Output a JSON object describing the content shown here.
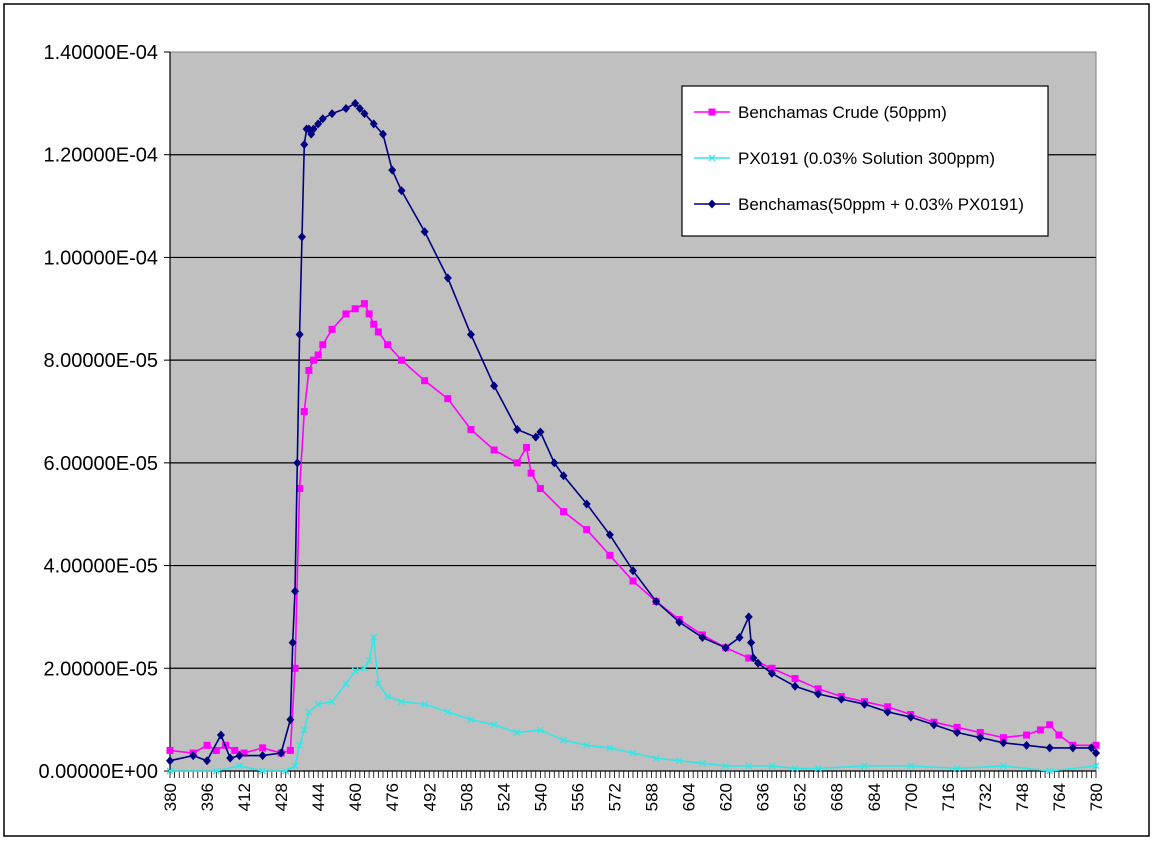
{
  "chart_data": {
    "type": "line",
    "title": "",
    "xlabel": "",
    "ylabel": "",
    "x_range": [
      380,
      780
    ],
    "x_tick_step": 16,
    "x_tick_labels": [
      "380",
      "396",
      "412",
      "428",
      "444",
      "460",
      "476",
      "492",
      "508",
      "524",
      "540",
      "556",
      "572",
      "588",
      "604",
      "620",
      "636",
      "652",
      "668",
      "684",
      "700",
      "716",
      "732",
      "748",
      "764",
      "780"
    ],
    "ylim": [
      0,
      0.00014
    ],
    "y_tick_labels": [
      "0.00000E+00",
      "2.00000E-05",
      "4.00000E-05",
      "6.00000E-05",
      "8.00000E-05",
      "1.00000E-04",
      "1.20000E-04",
      "1.40000E-04"
    ],
    "grid": "horizontal",
    "legend_position": "top-right",
    "plot_background": "#c0c0c0",
    "series": [
      {
        "name": "Benchamas Crude (50ppm)",
        "color": "#ff00ff",
        "marker": "square",
        "x": [
          380,
          390,
          396,
          400,
          404,
          408,
          412,
          420,
          428,
          432,
          434,
          436,
          438,
          440,
          442,
          444,
          446,
          450,
          456,
          460,
          464,
          466,
          468,
          470,
          474,
          480,
          490,
          500,
          510,
          520,
          530,
          534,
          536,
          540,
          550,
          560,
          570,
          580,
          590,
          600,
          610,
          620,
          630,
          640,
          650,
          660,
          670,
          680,
          690,
          700,
          710,
          720,
          730,
          740,
          750,
          756,
          760,
          764,
          770,
          780
        ],
        "y": [
          4e-06,
          3.5e-06,
          5e-06,
          4e-06,
          5e-06,
          4e-06,
          3.5e-06,
          4.5e-06,
          3.5e-06,
          4e-06,
          2e-05,
          5.5e-05,
          7e-05,
          7.8e-05,
          8e-05,
          8.1e-05,
          8.3e-05,
          8.6e-05,
          8.9e-05,
          9e-05,
          9.1e-05,
          8.9e-05,
          8.7e-05,
          8.55e-05,
          8.3e-05,
          8e-05,
          7.6e-05,
          7.25e-05,
          6.65e-05,
          6.25e-05,
          6e-05,
          6.3e-05,
          5.8e-05,
          5.5e-05,
          5.05e-05,
          4.7e-05,
          4.2e-05,
          3.7e-05,
          3.3e-05,
          2.95e-05,
          2.65e-05,
          2.4e-05,
          2.2e-05,
          2e-05,
          1.8e-05,
          1.6e-05,
          1.45e-05,
          1.35e-05,
          1.25e-05,
          1.1e-05,
          9.5e-06,
          8.5e-06,
          7.5e-06,
          6.5e-06,
          7e-06,
          8e-06,
          9e-06,
          7e-06,
          5e-06,
          5e-06
        ]
      },
      {
        "name": "PX0191 (0.03% Solution 300ppm)",
        "color": "#33e6e6",
        "marker": "x",
        "x": [
          380,
          400,
          410,
          420,
          430,
          434,
          436,
          438,
          440,
          444,
          450,
          456,
          460,
          464,
          466,
          468,
          470,
          474,
          480,
          490,
          500,
          510,
          520,
          530,
          540,
          550,
          560,
          570,
          580,
          590,
          600,
          610,
          620,
          630,
          640,
          650,
          660,
          680,
          700,
          720,
          740,
          760,
          780
        ],
        "y": [
          0,
          0,
          1e-06,
          0,
          0,
          1e-06,
          5e-06,
          8e-06,
          1.15e-05,
          1.3e-05,
          1.35e-05,
          1.7e-05,
          1.95e-05,
          2e-05,
          2.15e-05,
          2.6e-05,
          1.7e-05,
          1.45e-05,
          1.35e-05,
          1.3e-05,
          1.15e-05,
          1e-05,
          9e-06,
          7.5e-06,
          8e-06,
          6e-06,
          5e-06,
          4.5e-06,
          3.5e-06,
          2.5e-06,
          2e-06,
          1.5e-06,
          1e-06,
          1e-06,
          1e-06,
          5e-07,
          5e-07,
          1e-06,
          1e-06,
          5e-07,
          1e-06,
          0,
          1e-06
        ]
      },
      {
        "name": "Benchamas(50ppm + 0.03% PX0191)",
        "color": "#000080",
        "marker": "diamond",
        "x": [
          380,
          390,
          396,
          402,
          406,
          410,
          420,
          428,
          432,
          433,
          434,
          435,
          436,
          437,
          438,
          439,
          440,
          441,
          442,
          444,
          446,
          450,
          456,
          460,
          462,
          464,
          468,
          472,
          476,
          480,
          490,
          500,
          510,
          520,
          530,
          538,
          540,
          546,
          550,
          560,
          570,
          580,
          590,
          600,
          610,
          620,
          626,
          630,
          631,
          632,
          634,
          640,
          650,
          660,
          670,
          680,
          690,
          700,
          710,
          720,
          730,
          740,
          750,
          760,
          770,
          778,
          780
        ],
        "y": [
          2e-06,
          3e-06,
          2e-06,
          7e-06,
          2.5e-06,
          3e-06,
          3e-06,
          3.5e-06,
          1e-05,
          2.5e-05,
          3.5e-05,
          6e-05,
          8.5e-05,
          0.000104,
          0.000122,
          0.000125,
          0.000125,
          0.000124,
          0.000125,
          0.000126,
          0.000127,
          0.000128,
          0.000129,
          0.00013,
          0.000129,
          0.000128,
          0.000126,
          0.000124,
          0.000117,
          0.000113,
          0.000105,
          9.6e-05,
          8.5e-05,
          7.5e-05,
          6.65e-05,
          6.5e-05,
          6.6e-05,
          6e-05,
          5.75e-05,
          5.2e-05,
          4.6e-05,
          3.9e-05,
          3.3e-05,
          2.9e-05,
          2.6e-05,
          2.4e-05,
          2.6e-05,
          3e-05,
          2.5e-05,
          2.2e-05,
          2.1e-05,
          1.9e-05,
          1.65e-05,
          1.5e-05,
          1.4e-05,
          1.3e-05,
          1.15e-05,
          1.05e-05,
          9e-06,
          7.5e-06,
          6.5e-06,
          5.5e-06,
          5e-06,
          4.5e-06,
          4.5e-06,
          4.5e-06,
          3.5e-06
        ]
      }
    ]
  }
}
